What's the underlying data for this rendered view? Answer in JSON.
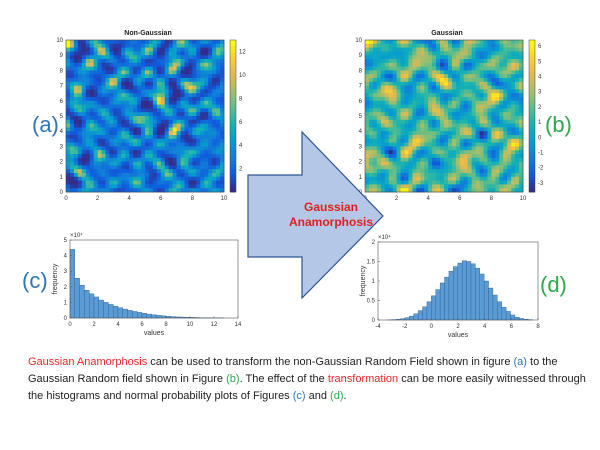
{
  "labels": {
    "a": "(a)",
    "b": "(b)",
    "c": "(c)",
    "d": "(d)"
  },
  "colors": {
    "label_blue": "#2e75b6",
    "label_green": "#2ea84a",
    "accent_red": "#e8262b",
    "arrow_fill": "#b4c7e7",
    "arrow_stroke": "#2f5597",
    "bar_fill": "#5b9bd5"
  },
  "arrow": {
    "line1": "Gaussian",
    "line2": "Anamorphosis"
  },
  "caption": {
    "p1": "Gaussian Anamorphosis",
    "p2": " can be used to transform the non-Gaussian Random Field shown in figure ",
    "p3": "(a)",
    "p4": " to the Gaussian Random field shown in Figure ",
    "p5": "(b)",
    "p6": ". The effect of the ",
    "p7": "transformation",
    "p8": " can be more easily witnessed through the histograms and normal probability plots of Figures ",
    "p9": "(c)",
    "p10": " and ",
    "p11": "(d)",
    "p12": "."
  },
  "chart_data": [
    {
      "type": "heatmap",
      "title": "Non-Gaussian",
      "xlim": [
        0,
        10
      ],
      "ylim": [
        0,
        10
      ],
      "x_ticks": [
        "0",
        "2",
        "4",
        "6",
        "8",
        "10"
      ],
      "y_ticks": [
        "0",
        "1",
        "2",
        "3",
        "4",
        "5",
        "6",
        "7",
        "8",
        "9",
        "10"
      ],
      "colorbar_ticks": [
        "2",
        "4",
        "6",
        "8",
        "10",
        "12"
      ],
      "colorbar_range": [
        0,
        13
      ]
    },
    {
      "type": "heatmap",
      "title": "Gaussian",
      "xlim": [
        0,
        10
      ],
      "ylim": [
        0,
        10
      ],
      "x_ticks": [
        "0",
        "2",
        "4",
        "6",
        "8",
        "10"
      ],
      "y_ticks": [
        "0",
        "1",
        "2",
        "3",
        "4",
        "5",
        "6",
        "7",
        "8",
        "9",
        "10"
      ],
      "colorbar_ticks": [
        "-3",
        "-2",
        "-1",
        "0",
        "1",
        "2",
        "3",
        "4",
        "5",
        "6"
      ],
      "colorbar_range": [
        -3.6,
        6.4
      ]
    },
    {
      "type": "bar",
      "xlabel": "values",
      "ylabel": "frequency",
      "y_exponent": "×10⁴",
      "xlim": [
        0,
        14
      ],
      "ylim": [
        0,
        5
      ],
      "x_ticks": [
        "0",
        "2",
        "4",
        "6",
        "8",
        "10",
        "12",
        "14"
      ],
      "y_ticks": [
        "0",
        "1",
        "2",
        "3",
        "4",
        "5"
      ],
      "bin_width": 0.4,
      "bins_start": 0,
      "values": [
        4.4,
        2.55,
        2.1,
        1.78,
        1.55,
        1.35,
        1.15,
        1.0,
        0.87,
        0.76,
        0.66,
        0.57,
        0.49,
        0.42,
        0.36,
        0.3,
        0.25,
        0.21,
        0.17,
        0.14,
        0.11,
        0.09,
        0.07,
        0.06,
        0.05,
        0.04,
        0.03,
        0.02,
        0.02,
        0.01,
        0.01,
        0.01
      ]
    },
    {
      "type": "bar",
      "xlabel": "values",
      "ylabel": "frequency",
      "y_exponent": "×10⁴",
      "xlim": [
        -4,
        8
      ],
      "ylim": [
        0,
        2
      ],
      "x_ticks": [
        "-4",
        "-2",
        "0",
        "2",
        "4",
        "6",
        "8"
      ],
      "y_ticks": [
        "0",
        "0.5",
        "1",
        "1.5",
        "2"
      ],
      "bin_width": 0.33,
      "bins_start": -3.3,
      "values": [
        0.005,
        0.01,
        0.02,
        0.035,
        0.06,
        0.1,
        0.16,
        0.24,
        0.34,
        0.47,
        0.62,
        0.78,
        0.95,
        1.1,
        1.25,
        1.37,
        1.46,
        1.52,
        1.5,
        1.44,
        1.33,
        1.18,
        1.0,
        0.82,
        0.64,
        0.47,
        0.33,
        0.22,
        0.13,
        0.07,
        0.04,
        0.02,
        0.01
      ]
    }
  ]
}
